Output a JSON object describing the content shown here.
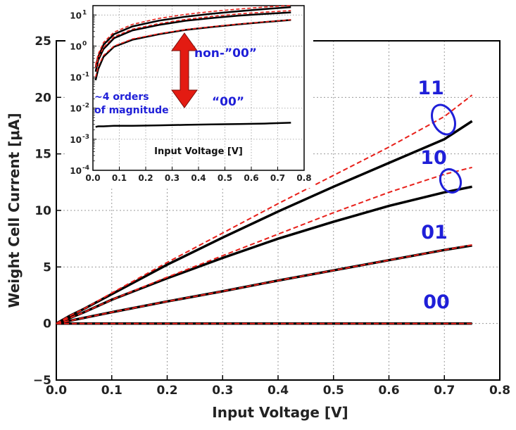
{
  "colors": {
    "measured": "#000000",
    "model": "#e8201a",
    "annotation": "#1f1fd8",
    "arrow": "#e31b12"
  },
  "chart_data": [
    {
      "type": "line",
      "xlabel": "Input Voltage [V]",
      "ylabel": "Weight Cell Current [μA]",
      "xlim": [
        0.0,
        0.8
      ],
      "ylim": [
        -5,
        25
      ],
      "xticks": [
        "0.0",
        "0.1",
        "0.2",
        "0.3",
        "0.4",
        "0.5",
        "0.6",
        "0.7",
        "0.8"
      ],
      "yticks": [
        "−5",
        "0",
        "5",
        "10",
        "15",
        "20",
        "25"
      ],
      "grid": true,
      "x": [
        0.0,
        0.025,
        0.05,
        0.1,
        0.2,
        0.3,
        0.4,
        0.5,
        0.6,
        0.7,
        0.75
      ],
      "series": [
        {
          "name": "00",
          "style": "measured",
          "values": [
            0,
            0,
            0,
            0,
            0,
            0,
            0,
            0,
            0,
            0,
            0
          ]
        },
        {
          "name": "00",
          "style": "model",
          "values": [
            0,
            0,
            0,
            0,
            0,
            0,
            0,
            0,
            0,
            0,
            0
          ]
        },
        {
          "name": "01",
          "style": "measured",
          "values": [
            0,
            0.25,
            0.5,
            1.0,
            1.95,
            2.85,
            3.8,
            4.7,
            5.6,
            6.5,
            6.9
          ]
        },
        {
          "name": "01",
          "style": "model",
          "values": [
            0,
            0.25,
            0.5,
            1.0,
            1.95,
            2.85,
            3.8,
            4.7,
            5.6,
            6.5,
            6.95
          ]
        },
        {
          "name": "10",
          "style": "measured",
          "values": [
            0,
            0.5,
            1.0,
            2.1,
            4.0,
            5.8,
            7.5,
            9.0,
            10.4,
            11.6,
            12.1
          ]
        },
        {
          "name": "10",
          "style": "model",
          "values": [
            0,
            0.5,
            1.0,
            2.1,
            4.1,
            6.0,
            7.9,
            9.8,
            11.6,
            13.2,
            13.8
          ]
        },
        {
          "name": "11",
          "style": "measured",
          "values": [
            0,
            0.7,
            1.3,
            2.6,
            5.2,
            7.6,
            9.9,
            12.1,
            14.2,
            16.3,
            17.9
          ]
        },
        {
          "name": "11",
          "style": "model",
          "values": [
            0,
            0.7,
            1.3,
            2.7,
            5.4,
            8.0,
            10.6,
            13.1,
            15.6,
            18.3,
            20.2
          ]
        }
      ],
      "annotations": [
        "00",
        "01",
        "10",
        "11"
      ]
    },
    {
      "type": "line",
      "scale": "log",
      "xlabel": "Input Voltage [V]",
      "xlim": [
        0.0,
        0.8
      ],
      "ylim": [
        0.0001,
        20
      ],
      "xticks": [
        "0.0",
        "0.1",
        "0.2",
        "0.3",
        "0.4",
        "0.5",
        "0.6",
        "0.7",
        "0.8"
      ],
      "yticks": [
        {
          "base": "10",
          "exp": "-4",
          "value": 0.0001
        },
        {
          "base": "10",
          "exp": "-3",
          "value": 0.001
        },
        {
          "base": "10",
          "exp": "-2",
          "value": 0.01
        },
        {
          "base": "10",
          "exp": "-1",
          "value": 0.1
        },
        {
          "base": "10",
          "exp": "0",
          "value": 1
        },
        {
          "base": "10",
          "exp": "1",
          "value": 10
        }
      ],
      "grid": true,
      "x": [
        0.01,
        0.02,
        0.04,
        0.08,
        0.15,
        0.25,
        0.35,
        0.45,
        0.55,
        0.65,
        0.75
      ],
      "series": [
        {
          "name": "00",
          "style": "measured",
          "values": [
            0.0025,
            0.0026,
            0.0026,
            0.0027,
            0.0027,
            0.0028,
            0.0029,
            0.003,
            0.0031,
            0.0032,
            0.0034
          ]
        },
        {
          "name": "01",
          "style": "measured",
          "values": [
            0.08,
            0.18,
            0.45,
            0.95,
            1.6,
            2.4,
            3.3,
            4.1,
            5.0,
            5.9,
            6.9
          ]
        },
        {
          "name": "01",
          "style": "model",
          "values": [
            0.1,
            0.22,
            0.5,
            1.0,
            1.7,
            2.5,
            3.4,
            4.2,
            5.1,
            6.0,
            7.0
          ]
        },
        {
          "name": "10",
          "style": "measured",
          "values": [
            0.15,
            0.35,
            0.8,
            1.8,
            3.2,
            4.8,
            6.5,
            8.0,
            9.5,
            10.8,
            12.1
          ]
        },
        {
          "name": "10",
          "style": "model",
          "values": [
            0.2,
            0.4,
            0.9,
            2.0,
            3.5,
            5.3,
            7.2,
            9.0,
            10.8,
            12.4,
            13.8
          ]
        },
        {
          "name": "11",
          "style": "measured",
          "values": [
            0.2,
            0.45,
            1.1,
            2.4,
            4.3,
            6.6,
            8.8,
            11.0,
            13.2,
            15.5,
            17.9
          ]
        },
        {
          "name": "11",
          "style": "model",
          "values": [
            0.25,
            0.55,
            1.3,
            2.8,
            5.0,
            7.8,
            10.4,
            13.0,
            15.5,
            18.0,
            20.2
          ]
        }
      ],
      "annotations": [
        "non-”00”",
        "“00”",
        "~4 orders",
        "of magnitude"
      ]
    }
  ],
  "labels": {
    "s11": "11",
    "s10": "10",
    "s01": "01",
    "s00": "00",
    "non00": "non-”00”",
    "q00": "“00”",
    "orders1": "~4 orders",
    "orders2": "of magnitude"
  }
}
